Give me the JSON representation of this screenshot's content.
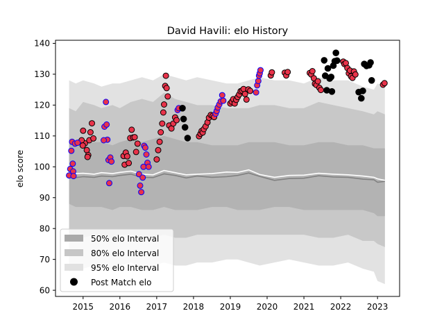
{
  "chart_data": {
    "type": "scatter",
    "title": "David Havili: elo History",
    "xlabel": "",
    "ylabel": "elo score",
    "xlim": [
      2014.25,
      2023.6
    ],
    "ylim": [
      58,
      141
    ],
    "x_ticks": [
      2015,
      2016,
      2017,
      2018,
      2019,
      2020,
      2021,
      2022,
      2023
    ],
    "x_tick_labels": [
      "2015",
      "2016",
      "2017",
      "2018",
      "2019",
      "2020",
      "2021",
      "2022",
      "2023"
    ],
    "y_ticks": [
      60,
      70,
      80,
      90,
      100,
      110,
      120,
      130,
      140
    ],
    "y_tick_labels": [
      "60",
      "70",
      "80",
      "90",
      "100",
      "110",
      "120",
      "130",
      "140"
    ],
    "grid": false,
    "legend_position": "lower-left",
    "legend": [
      {
        "label": "50% elo Interval",
        "kind": "patch",
        "color": "#a9a9a9"
      },
      {
        "label": "80% elo Interval",
        "kind": "patch",
        "color": "#c6c6c6"
      },
      {
        "label": "95% elo Interval",
        "kind": "patch",
        "color": "#e1e1e1"
      },
      {
        "label": "Post Match elo",
        "kind": "marker",
        "color": "#000000"
      }
    ],
    "colors": {
      "band95": "#e2e2e2",
      "band80": "#c8c8c8",
      "band50": "#b3b3b3",
      "median_line": "#808080",
      "mean_line": "#ffffff",
      "point_fill_red": "#e8334a",
      "edge_blue": "#0000ff",
      "edge_black": "#000000",
      "point_black": "#000000"
    },
    "bands": {
      "x": [
        2014.62,
        2014.8,
        2015.0,
        2015.3,
        2015.5,
        2015.8,
        2016.0,
        2016.3,
        2016.6,
        2016.9,
        2017.2,
        2017.5,
        2017.8,
        2018.1,
        2018.5,
        2018.9,
        2019.2,
        2019.5,
        2019.8,
        2020.2,
        2020.6,
        2021.0,
        2021.4,
        2021.8,
        2022.2,
        2022.6,
        2022.9,
        2023.0,
        2023.2
      ],
      "p95_upper": [
        128,
        127,
        128,
        127,
        126,
        127,
        127,
        128,
        129,
        128,
        130,
        129,
        128,
        129,
        128,
        127,
        127,
        128,
        129,
        128,
        128,
        127,
        129,
        128,
        128,
        126,
        125,
        127,
        126
      ],
      "p95_lower": [
        66,
        67,
        67,
        68,
        67,
        67,
        68,
        69,
        67,
        68,
        69,
        68,
        68,
        69,
        69,
        70,
        70,
        69,
        68,
        69,
        70,
        69,
        68,
        68,
        69,
        67,
        66,
        63,
        62
      ],
      "p80_upper": [
        119,
        118,
        121,
        120,
        119,
        120,
        119,
        121,
        122,
        121,
        124,
        122,
        121,
        120,
        120,
        119,
        119,
        119,
        120,
        120,
        119,
        119,
        121,
        120,
        119,
        118,
        117,
        118,
        117
      ],
      "p80_lower": [
        76,
        76,
        77,
        78,
        77,
        77,
        78,
        78,
        77,
        77,
        78,
        77,
        77,
        78,
        78,
        78,
        78,
        78,
        78,
        78,
        78,
        78,
        77,
        77,
        78,
        76,
        76,
        75,
        74
      ],
      "p50_upper": [
        109,
        108,
        108,
        108,
        108,
        107,
        108,
        109,
        108,
        109,
        110,
        109,
        108,
        108,
        107,
        107,
        107,
        108,
        108,
        108,
        107,
        107,
        108,
        108,
        107,
        107,
        106,
        106,
        106
      ],
      "p50_lower": [
        88,
        87,
        87,
        87,
        87,
        86,
        87,
        87,
        86,
        86,
        87,
        86,
        86,
        86,
        87,
        87,
        86,
        86,
        86,
        87,
        87,
        86,
        86,
        86,
        86,
        86,
        85,
        84,
        84
      ],
      "median": [
        96.7,
        96.5,
        96.8,
        96.6,
        97.0,
        96.8,
        97.2,
        97.6,
        96.6,
        96.5,
        97.7,
        97.2,
        96.4,
        97.0,
        96.6,
        96.8,
        97.2,
        98.0,
        96.9,
        95.6,
        96.2,
        96.3,
        97.1,
        96.7,
        96.6,
        96.0,
        95.8,
        95.0,
        95.3
      ],
      "mean": [
        98.0,
        97.8,
        97.9,
        97.6,
        98.1,
        97.8,
        98.2,
        98.6,
        97.6,
        97.4,
        98.8,
        98.1,
        97.4,
        97.6,
        97.8,
        98.3,
        98.2,
        99.0,
        97.5,
        96.6,
        97.2,
        97.3,
        97.9,
        97.6,
        97.4,
        97.0,
        96.6,
        96.1,
        95.6
      ]
    },
    "series": [
      {
        "name": "Post Match elo",
        "points_red_blue_edge": [
          [
            2014.62,
            97.2
          ],
          [
            2014.65,
            99.3
          ],
          [
            2014.68,
            105.2
          ],
          [
            2014.7,
            108.1
          ],
          [
            2014.72,
            101
          ],
          [
            2014.73,
            98.5
          ],
          [
            2014.74,
            97
          ],
          [
            2014.78,
            107.5
          ],
          [
            2014.85,
            107.8
          ],
          [
            2015.58,
            113
          ],
          [
            2015.62,
            121
          ],
          [
            2015.64,
            113.7
          ],
          [
            2015.66,
            108.8
          ],
          [
            2015.69,
            102.2
          ],
          [
            2015.71,
            94.7
          ],
          [
            2015.74,
            103
          ],
          [
            2015.77,
            101.7
          ],
          [
            2015.56,
            108.6
          ],
          [
            2016.52,
            97.6
          ],
          [
            2016.55,
            93.9
          ],
          [
            2016.58,
            91.8
          ],
          [
            2016.62,
            96.5
          ],
          [
            2016.64,
            100
          ],
          [
            2016.66,
            106.8
          ],
          [
            2016.69,
            106.2
          ],
          [
            2016.72,
            104
          ],
          [
            2016.75,
            101.3
          ],
          [
            2016.78,
            100
          ],
          [
            2017.57,
            118.4
          ],
          [
            2017.6,
            119
          ],
          [
            2018.6,
            117.2
          ],
          [
            2018.63,
            118.1
          ],
          [
            2018.66,
            119.2
          ],
          [
            2018.7,
            120.2
          ],
          [
            2018.74,
            121.2
          ],
          [
            2018.78,
            123.2
          ],
          [
            2018.81,
            121.4
          ],
          [
            2019.7,
            124.1
          ],
          [
            2019.73,
            126.4
          ],
          [
            2019.76,
            127.8
          ],
          [
            2019.78,
            129.5
          ],
          [
            2019.8,
            130.3
          ],
          [
            2019.82,
            131.3
          ]
        ],
        "points_red_black_edge": [
          [
            2015.0,
            111.7
          ],
          [
            2015.05,
            107.6
          ],
          [
            2015.1,
            105.4
          ],
          [
            2015.14,
            103.8
          ],
          [
            2015.17,
            108.6
          ],
          [
            2014.96,
            108.6
          ],
          [
            2014.99,
            106.9
          ],
          [
            2015.2,
            111.2
          ],
          [
            2015.24,
            114.1
          ],
          [
            2015.28,
            109.2
          ],
          [
            2015.12,
            103.2
          ],
          [
            2016.1,
            103.5
          ],
          [
            2016.13,
            100.7
          ],
          [
            2016.16,
            104.6
          ],
          [
            2016.2,
            103.4
          ],
          [
            2016.24,
            101.2
          ],
          [
            2016.28,
            109.3
          ],
          [
            2016.32,
            112
          ],
          [
            2016.36,
            109.5
          ],
          [
            2016.4,
            109.6
          ],
          [
            2016.44,
            104.8
          ],
          [
            2016.48,
            107.5
          ],
          [
            2017.0,
            102.4
          ],
          [
            2017.04,
            105.4
          ],
          [
            2017.08,
            108.1
          ],
          [
            2017.11,
            111.2
          ],
          [
            2017.15,
            114
          ],
          [
            2017.18,
            117.6
          ],
          [
            2017.2,
            120.2
          ],
          [
            2017.23,
            126.2
          ],
          [
            2017.25,
            129.5
          ],
          [
            2017.27,
            125.5
          ],
          [
            2017.3,
            122.8
          ],
          [
            2017.34,
            113.4
          ],
          [
            2017.4,
            112.4
          ],
          [
            2017.45,
            114
          ],
          [
            2017.5,
            116
          ],
          [
            2017.54,
            115.1
          ],
          [
            2018.15,
            109.9
          ],
          [
            2018.19,
            110.7
          ],
          [
            2018.22,
            111.6
          ],
          [
            2018.25,
            111.1
          ],
          [
            2018.28,
            112.2
          ],
          [
            2018.33,
            113.1
          ],
          [
            2018.38,
            114.4
          ],
          [
            2018.42,
            115.9
          ],
          [
            2018.47,
            116.8
          ],
          [
            2018.52,
            116.5
          ],
          [
            2018.56,
            116.1
          ],
          [
            2019.0,
            120.5
          ],
          [
            2019.04,
            121.1
          ],
          [
            2019.08,
            121.9
          ],
          [
            2019.12,
            120.5
          ],
          [
            2019.16,
            121.7
          ],
          [
            2019.2,
            122.6
          ],
          [
            2019.24,
            123.4
          ],
          [
            2019.28,
            124.5
          ],
          [
            2019.32,
            124.7
          ],
          [
            2019.36,
            125.2
          ],
          [
            2019.4,
            123.6
          ],
          [
            2019.44,
            121.8
          ],
          [
            2019.49,
            125.1
          ],
          [
            2019.54,
            124.6
          ],
          [
            2020.1,
            129.6
          ],
          [
            2020.13,
            130.6
          ],
          [
            2020.48,
            130.5
          ],
          [
            2020.52,
            129.6
          ],
          [
            2020.56,
            130.7
          ],
          [
            2021.16,
            130.4
          ],
          [
            2021.2,
            129.9
          ],
          [
            2021.23,
            131
          ],
          [
            2021.27,
            128.7
          ],
          [
            2021.3,
            126.9
          ],
          [
            2021.34,
            126.5
          ],
          [
            2021.38,
            127.7
          ],
          [
            2021.42,
            125.6
          ],
          [
            2021.46,
            124.9
          ],
          [
            2022.07,
            134.1
          ],
          [
            2022.1,
            133.3
          ],
          [
            2022.14,
            133.6
          ],
          [
            2022.18,
            132
          ],
          [
            2022.22,
            130.3
          ],
          [
            2022.25,
            131.2
          ],
          [
            2022.28,
            129.3
          ],
          [
            2022.32,
            128.8
          ],
          [
            2022.36,
            130.9
          ],
          [
            2022.4,
            129.9
          ],
          [
            2023.15,
            126.6
          ],
          [
            2023.19,
            127.1
          ]
        ],
        "points_black": [
          [
            2017.7,
            119
          ],
          [
            2017.73,
            115.5
          ],
          [
            2017.77,
            112.8
          ],
          [
            2017.84,
            109.3
          ],
          [
            2021.55,
            134.5
          ],
          [
            2021.58,
            129.5
          ],
          [
            2021.62,
            124.8
          ],
          [
            2021.65,
            131.9
          ],
          [
            2021.7,
            128.6
          ],
          [
            2021.74,
            129.1
          ],
          [
            2021.76,
            124.4
          ],
          [
            2021.8,
            132.8
          ],
          [
            2021.84,
            134.2
          ],
          [
            2021.87,
            136.9
          ],
          [
            2021.9,
            134.4
          ],
          [
            2022.49,
            124.2
          ],
          [
            2022.56,
            122.2
          ],
          [
            2022.6,
            124.6
          ],
          [
            2022.64,
            133.3
          ],
          [
            2022.7,
            132.7
          ],
          [
            2022.77,
            132.9
          ],
          [
            2022.81,
            133.8
          ],
          [
            2022.84,
            128
          ]
        ]
      }
    ]
  }
}
